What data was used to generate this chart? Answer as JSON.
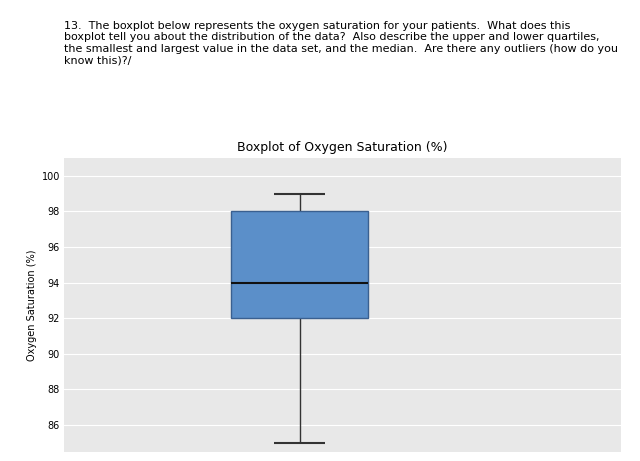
{
  "title": "Boxplot of Oxygen Saturation (%)",
  "ylabel": "Oxygen Saturation (%)",
  "question_text": "13.  The boxplot below represents the oxygen saturation for your patients.  What does this\nboxplot tell you about the distribution of the data?  Also describe the upper and lower quartiles,\nthe smallest and largest value in the data set, and the median.  Are there any outliers (how do you\nknow this)?/",
  "whisker_low": 85,
  "q1": 92,
  "median": 94,
  "q3": 98,
  "whisker_high": 99,
  "ylim_low": 84.5,
  "ylim_high": 101.0,
  "yticks": [
    86,
    88,
    90,
    92,
    94,
    96,
    98,
    100
  ],
  "box_color": "#5B8FC9",
  "box_edge_color": "#3A6090",
  "median_color": "#111111",
  "whisker_color": "#333333",
  "cap_color": "#333333",
  "bg_color": "#ffffff",
  "plot_bg_color": "#e8e8e8",
  "grid_color": "#ffffff",
  "title_fontsize": 9,
  "ylabel_fontsize": 7,
  "tick_fontsize": 7,
  "question_fontsize": 8
}
